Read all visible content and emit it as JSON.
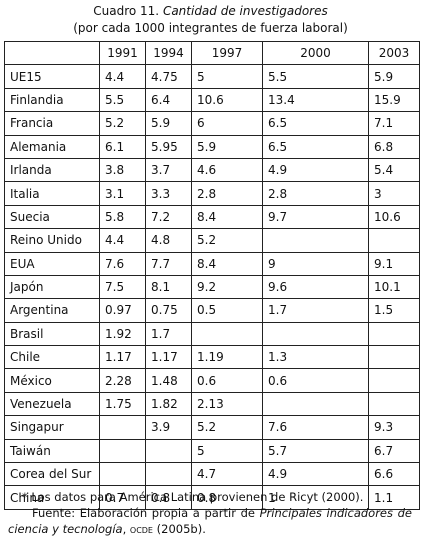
{
  "caption": {
    "number": "Cuadro 11.",
    "title": "Cantidad de investigadores",
    "subtitle": "(por cada 1000 integrantes de fuerza laboral)"
  },
  "table": {
    "header": [
      "",
      "1991",
      "1994",
      "1997",
      "2000",
      "2003"
    ],
    "rows": [
      [
        "UE15",
        "4.4",
        "4.75",
        "5",
        "5.5",
        "5.9"
      ],
      [
        "Finlandia",
        "5.5",
        "6.4",
        "10.6",
        "13.4",
        "15.9"
      ],
      [
        "Francia",
        "5.2",
        "5.9",
        "6",
        "6.5",
        "7.1"
      ],
      [
        "Alemania",
        "6.1",
        "5.95",
        "5.9",
        "6.5",
        "6.8"
      ],
      [
        "Irlanda",
        "3.8",
        "3.7",
        "4.6",
        "4.9",
        "5.4"
      ],
      [
        "Italia",
        "3.1",
        "3.3",
        "2.8",
        "2.8",
        "3"
      ],
      [
        "Suecia",
        "5.8",
        "7.2",
        "8.4",
        "9.7",
        "10.6"
      ],
      [
        "Reino Unido",
        "4.4",
        "4.8",
        "5.2",
        "",
        ""
      ],
      [
        "EUA",
        "7.6",
        "7.7",
        "8.4",
        "9",
        "9.1"
      ],
      [
        "Japón",
        "7.5",
        "8.1",
        "9.2",
        "9.6",
        "10.1"
      ],
      [
        "Argentina",
        "0.97",
        "0.75",
        "0.5",
        "1.7",
        "1.5"
      ],
      [
        "Brasil",
        "1.92",
        "1.7",
        "",
        "",
        ""
      ],
      [
        "Chile",
        "1.17",
        "1.17",
        "1.19",
        "1.3",
        ""
      ],
      [
        "México",
        "2.28",
        "1.48",
        "0.6",
        "0.6",
        ""
      ],
      [
        "Venezuela",
        "1.75",
        "1.82",
        "2.13",
        "",
        ""
      ],
      [
        "Singapur",
        "",
        "3.9",
        "5.2",
        "7.6",
        "9.3"
      ],
      [
        "Taiwán",
        "",
        "",
        "5",
        "5.7",
        "6.7"
      ],
      [
        "Corea del Sur",
        "",
        "",
        "4.7",
        "4.9",
        "6.6"
      ],
      [
        "China",
        "0.7",
        "0.8",
        "0.8",
        "1",
        "1.1"
      ]
    ]
  },
  "notes": {
    "note1": "* Los datos para América Latina provienen de Ricyt (2000).",
    "source_prefix": "Fuente: Elaboración propia a partir de",
    "source_title": "Principales indicadores de ciencia y tecnología",
    "source_org": "ocde",
    "source_year": "(2005b)."
  }
}
